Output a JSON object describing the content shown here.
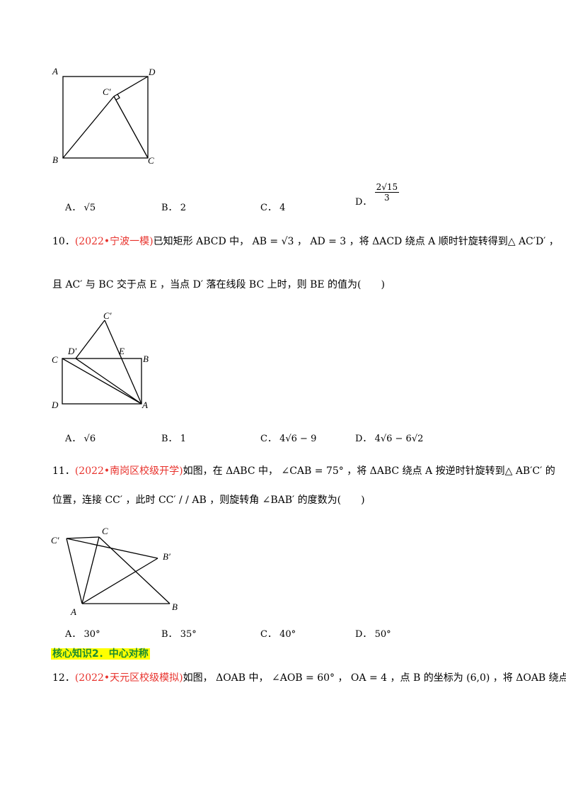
{
  "fig9": {
    "labels": {
      "A": "A",
      "D": "D",
      "B": "B",
      "C": "C",
      "Cp": "C′"
    }
  },
  "q9_options": {
    "A": {
      "letter": "A．",
      "text": "√5"
    },
    "B": {
      "letter": "B．",
      "text": "2"
    },
    "C": {
      "letter": "C．",
      "text": "4"
    },
    "D": {
      "letter": "D．",
      "num": "2√15",
      "den": "3"
    }
  },
  "q10": {
    "number": "10．",
    "source": "(2022•宁波一模)",
    "line1": "已知矩形 ABCD 中， AB = √3 ， AD = 3 ，将 ΔACD 绕点 A 顺时针旋转得到△ AC′D′ ，",
    "line2": "且 AC′ 与 BC 交于点 E ，当点 D′ 落在线段 BC 上时，则 BE 的值为(　　)",
    "labels": {
      "Cp": "C′",
      "Dp": "D′",
      "E": "E",
      "C": "C",
      "B": "B",
      "D": "D",
      "A": "A"
    },
    "options": {
      "A": {
        "letter": "A．",
        "text": "√6"
      },
      "B": {
        "letter": "B．",
        "text": "1"
      },
      "C": {
        "letter": "C．",
        "text": "4√6 − 9"
      },
      "D": {
        "letter": "D．",
        "text": "4√6 − 6√2"
      }
    }
  },
  "q11": {
    "number": "11．",
    "source": "(2022•南岗区校级开学)",
    "line1": "如图，在 ΔABC 中， ∠CAB = 75° ，将 ΔABC 绕点 A 按逆时针旋转到△ AB′C′ 的",
    "line2": "位置，连接 CC′ ，此时 CC′ / / AB ，则旋转角 ∠BAB′ 的度数为(　　)",
    "labels": {
      "Cp": "C′",
      "C": "C",
      "Bp": "B′",
      "A": "A",
      "B": "B"
    },
    "options": {
      "A": {
        "letter": "A．",
        "text": "30°"
      },
      "B": {
        "letter": "B．",
        "text": "35°"
      },
      "C": {
        "letter": "C．",
        "text": "40°"
      },
      "D": {
        "letter": "D．",
        "text": "50°"
      }
    }
  },
  "section": {
    "title": "核心知识2．中心对称"
  },
  "q12": {
    "number": "12．",
    "source": "(2022•天元区校级模拟)",
    "line1": "如图， ΔOAB 中， ∠AOB = 60° ， OA = 4 ，点 B 的坐标为 (6,0) ，将 ΔOAB 绕点"
  }
}
